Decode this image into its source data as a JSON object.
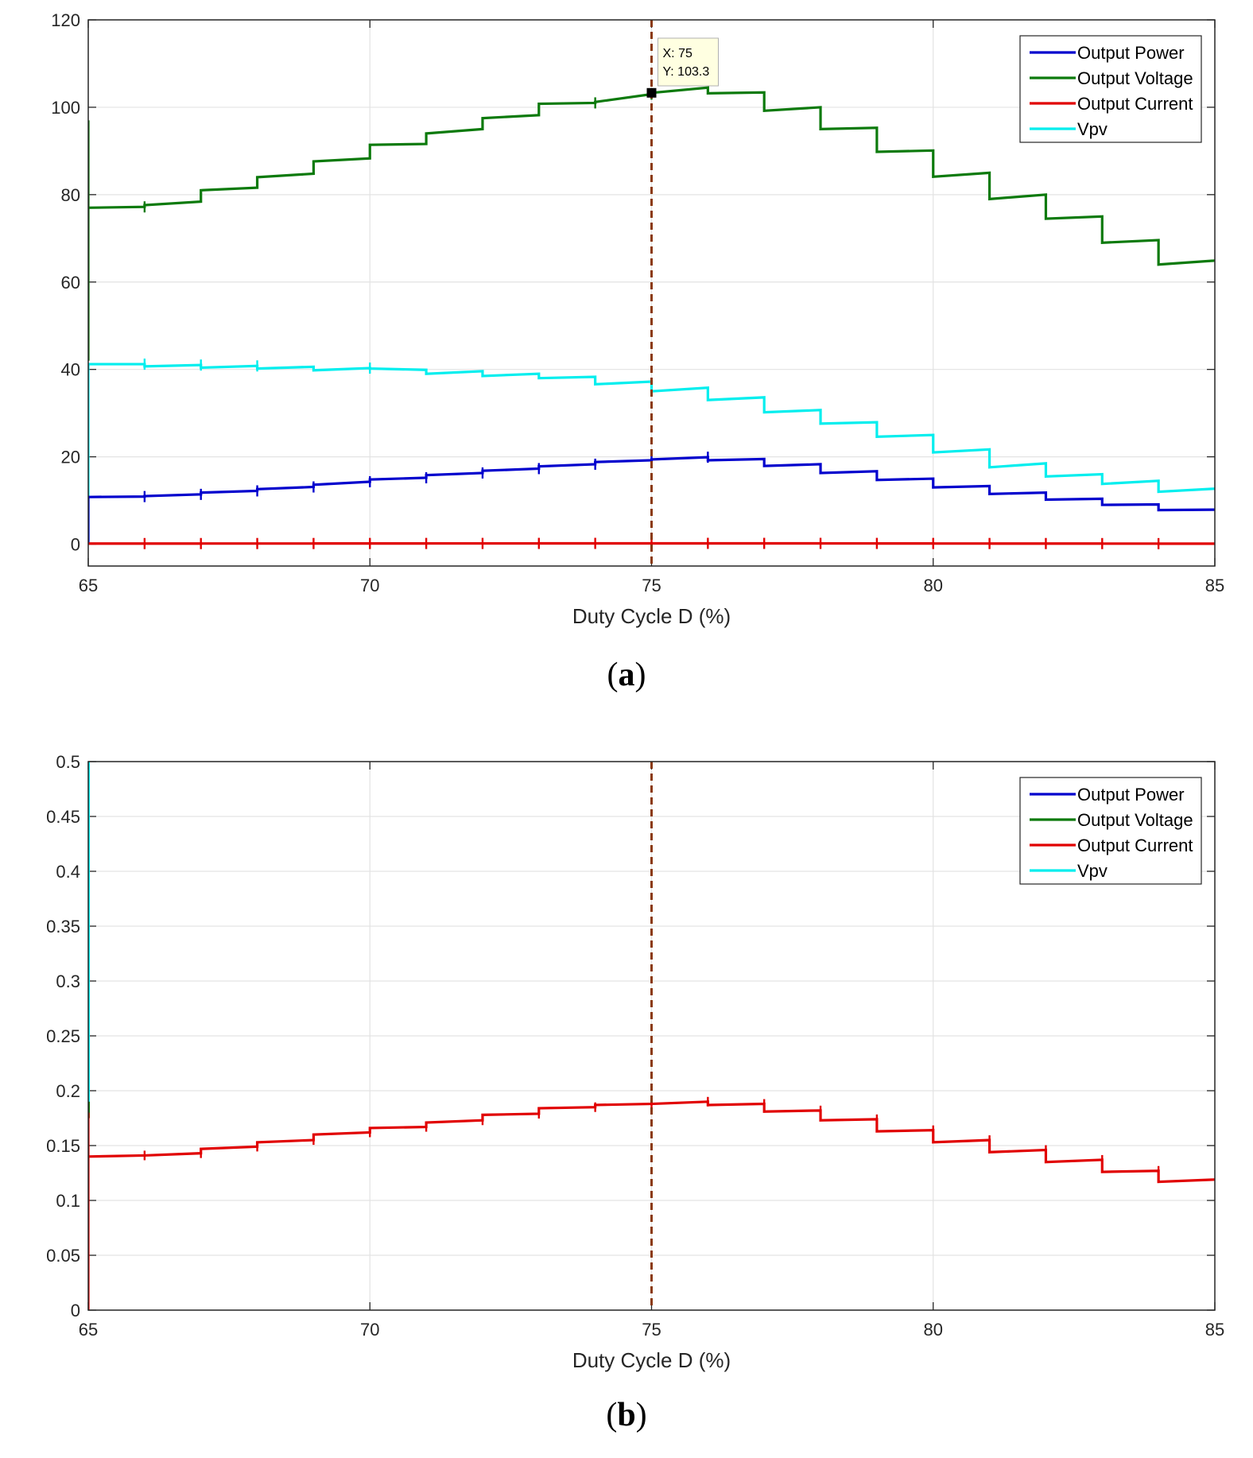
{
  "figure": {
    "captions": [
      "(a)",
      "(b)"
    ],
    "caption_letters": [
      "a",
      "b"
    ]
  },
  "chart_data": [
    {
      "type": "line",
      "panel": "a",
      "xlabel": "Duty Cycle D (%)",
      "ylabel": "",
      "xlim": [
        65,
        85
      ],
      "ylim": [
        -5,
        120
      ],
      "xticks": [
        65,
        70,
        75,
        80,
        85
      ],
      "yticks": [
        0,
        20,
        40,
        60,
        80,
        100,
        120
      ],
      "grid": true,
      "legend_position": "top-right",
      "marker_line": {
        "x": 75,
        "style": "dashed",
        "color": "#8B3A0F"
      },
      "datatip": {
        "x": 75,
        "y": 103.3,
        "lines": [
          "X: 75",
          "Y: 103.3"
        ]
      },
      "x": [
        65,
        66,
        67,
        68,
        69,
        70,
        71,
        72,
        73,
        74,
        75,
        76,
        77,
        78,
        79,
        80,
        81,
        82,
        83,
        84,
        85
      ],
      "series": [
        {
          "name": "Output Power",
          "color": "#0000CD",
          "start": [
            10.8,
            11.0,
            11.8,
            12.6,
            13.6,
            14.8,
            15.8,
            16.8,
            17.8,
            18.8,
            19.4,
            19.2,
            17.9,
            16.3,
            14.7,
            13.0,
            11.5,
            10.2,
            9.0,
            7.8
          ],
          "end": [
            10.9,
            11.4,
            12.2,
            13.1,
            14.3,
            15.2,
            16.3,
            17.3,
            18.3,
            19.2,
            19.9,
            19.5,
            18.3,
            16.7,
            15.0,
            13.3,
            11.8,
            10.4,
            9.1,
            7.9
          ],
          "initial_spike": [
            0,
            10.8
          ]
        },
        {
          "name": "Output Voltage",
          "color": "#0C7A0C",
          "start": [
            77,
            77.6,
            81,
            84,
            87.6,
            91.4,
            94,
            97.5,
            100.8,
            101.2,
            103.3,
            103.2,
            99.2,
            95,
            89.8,
            84.1,
            79,
            74.5,
            69,
            64
          ],
          "end": [
            77.2,
            78.4,
            81.6,
            84.8,
            88.3,
            91.6,
            95.0,
            98.2,
            101.0,
            103.0,
            104.5,
            103.4,
            100.0,
            95.3,
            90.1,
            85.0,
            80.0,
            75.0,
            69.6,
            64.9
          ],
          "initial_spike": [
            42,
            97
          ]
        },
        {
          "name": "Output Current",
          "color": "#E10000",
          "start": [
            0.14,
            0.141,
            0.147,
            0.153,
            0.16,
            0.166,
            0.171,
            0.178,
            0.184,
            0.187,
            0.188,
            0.187,
            0.181,
            0.173,
            0.163,
            0.153,
            0.144,
            0.135,
            0.126,
            0.117
          ],
          "end": [
            0.141,
            0.143,
            0.149,
            0.155,
            0.162,
            0.167,
            0.173,
            0.179,
            0.185,
            0.188,
            0.19,
            0.188,
            0.182,
            0.174,
            0.164,
            0.155,
            0.146,
            0.137,
            0.127,
            0.119
          ],
          "initial_spike": [
            0,
            0.18
          ]
        },
        {
          "name": "Vpv",
          "color": "#00EEEE",
          "start": [
            41.2,
            40.7,
            40.4,
            40.2,
            39.8,
            40.2,
            39.0,
            38.5,
            38.0,
            36.6,
            35.0,
            33.0,
            30.2,
            27.6,
            24.6,
            21.0,
            17.6,
            15.5,
            13.8,
            12.0
          ],
          "end": [
            41.2,
            41.0,
            40.8,
            40.6,
            40.3,
            39.9,
            39.6,
            39.0,
            38.3,
            37.2,
            35.8,
            33.6,
            30.7,
            27.9,
            25.0,
            21.7,
            18.5,
            16.0,
            14.5,
            12.7
          ],
          "initial_spike": [
            0,
            41.2
          ]
        }
      ]
    },
    {
      "type": "line",
      "panel": "b",
      "xlabel": "Duty Cycle D (%)",
      "ylabel": "",
      "xlim": [
        65,
        85
      ],
      "ylim": [
        0,
        0.5
      ],
      "xticks": [
        65,
        70,
        75,
        80,
        85
      ],
      "yticks": [
        0,
        0.05,
        0.1,
        0.15,
        0.2,
        0.25,
        0.3,
        0.35,
        0.4,
        0.45,
        0.5
      ],
      "grid": true,
      "legend_position": "top-right",
      "marker_line": {
        "x": 75,
        "style": "dashed",
        "color": "#8B3A0F"
      },
      "legend": [
        "Output Power",
        "Output Voltage",
        "Output Current",
        "Vpv"
      ],
      "legend_colors": [
        "#0000CD",
        "#0C7A0C",
        "#E10000",
        "#00EEEE"
      ]
    }
  ]
}
